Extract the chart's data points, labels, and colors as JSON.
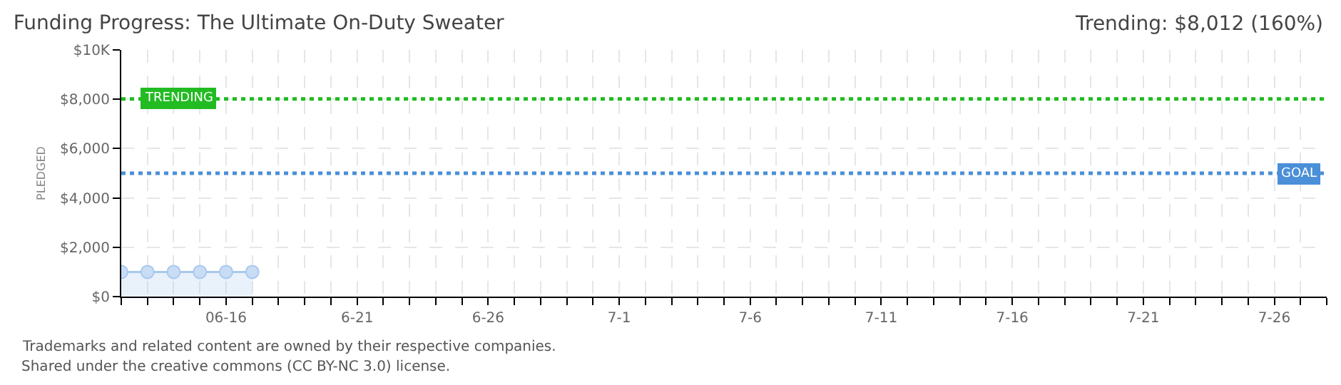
{
  "chart_data": {
    "type": "area",
    "title": "Funding Progress: The Ultimate On-Duty Sweater",
    "subtitle": "Trending: $8,012 (160%)",
    "ylabel": "PLEDGED",
    "x": [
      "--06-12",
      "--06-13",
      "--06-14",
      "--06-15",
      "--06-16",
      "--06-17"
    ],
    "series": [
      {
        "color": "#a9c8ee",
        "values": [
          1000,
          1000,
          1000,
          1000,
          1000,
          1000
        ]
      }
    ],
    "marker": "circle",
    "grid": true,
    "xlim": [
      "--06-12",
      "--07-28"
    ],
    "xticks": [
      {
        "value": "--06-12",
        "label": null
      },
      {
        "value": "--06-13",
        "label": null
      },
      {
        "value": "--06-14",
        "label": null
      },
      {
        "value": "--06-15",
        "label": null
      },
      {
        "value": "--06-16",
        "label": "06-16"
      },
      {
        "value": "--06-17",
        "label": null
      },
      {
        "value": "--06-18",
        "label": null
      },
      {
        "value": "--06-19",
        "label": null
      },
      {
        "value": "--06-20",
        "label": null
      },
      {
        "value": "--06-21",
        "label": "6-21"
      },
      {
        "value": "--06-22",
        "label": null
      },
      {
        "value": "--06-23",
        "label": null
      },
      {
        "value": "--06-24",
        "label": null
      },
      {
        "value": "--06-25",
        "label": null
      },
      {
        "value": "--06-26",
        "label": "6-26"
      },
      {
        "value": "--06-27",
        "label": null
      },
      {
        "value": "--06-28",
        "label": null
      },
      {
        "value": "--06-29",
        "label": null
      },
      {
        "value": "--06-30",
        "label": null
      },
      {
        "value": "--07-01",
        "label": "7-1"
      },
      {
        "value": "--07-02",
        "label": null
      },
      {
        "value": "--07-03",
        "label": null
      },
      {
        "value": "--07-04",
        "label": null
      },
      {
        "value": "--07-05",
        "label": null
      },
      {
        "value": "--07-06",
        "label": "7-6"
      },
      {
        "value": "--07-07",
        "label": null
      },
      {
        "value": "--07-08",
        "label": null
      },
      {
        "value": "--07-09",
        "label": null
      },
      {
        "value": "--07-10",
        "label": null
      },
      {
        "value": "--07-11",
        "label": "7-11"
      },
      {
        "value": "--07-12",
        "label": null
      },
      {
        "value": "--07-13",
        "label": null
      },
      {
        "value": "--07-14",
        "label": null
      },
      {
        "value": "--07-15",
        "label": null
      },
      {
        "value": "--07-16",
        "label": "7-16"
      },
      {
        "value": "--07-17",
        "label": null
      },
      {
        "value": "--07-18",
        "label": null
      },
      {
        "value": "--07-19",
        "label": null
      },
      {
        "value": "--07-20",
        "label": null
      },
      {
        "value": "--07-21",
        "label": "7-21"
      },
      {
        "value": "--07-22",
        "label": null
      },
      {
        "value": "--07-23",
        "label": null
      },
      {
        "value": "--07-24",
        "label": null
      },
      {
        "value": "--07-25",
        "label": null
      },
      {
        "value": "--07-26",
        "label": "7-26"
      },
      {
        "value": "--07-27",
        "label": null
      },
      {
        "value": "--07-28",
        "label": null
      }
    ],
    "ylim": [
      0,
      10000
    ],
    "yticks": [
      {
        "value": 0,
        "label": "$0"
      },
      {
        "value": 2000,
        "label": "$2,000"
      },
      {
        "value": 4000,
        "label": "$4,000"
      },
      {
        "value": 6000,
        "label": "$6,000"
      },
      {
        "value": 8000,
        "label": "$8,000"
      },
      {
        "value": 10000,
        "label": "$10K"
      }
    ],
    "ref_lines": [
      {
        "axis": "y",
        "value": 8012,
        "label": "TRENDING",
        "color": "#22bb22",
        "line_style": "dotted"
      },
      {
        "axis": "y",
        "value": 5000,
        "label": "GOAL",
        "color": "#4a8fd8",
        "line_style": "dotted"
      }
    ],
    "annotations": [
      "Trademarks and related content are owned by their respective companies.",
      "Shared under the creative commons (CC BY-NC 3.0) license."
    ]
  }
}
